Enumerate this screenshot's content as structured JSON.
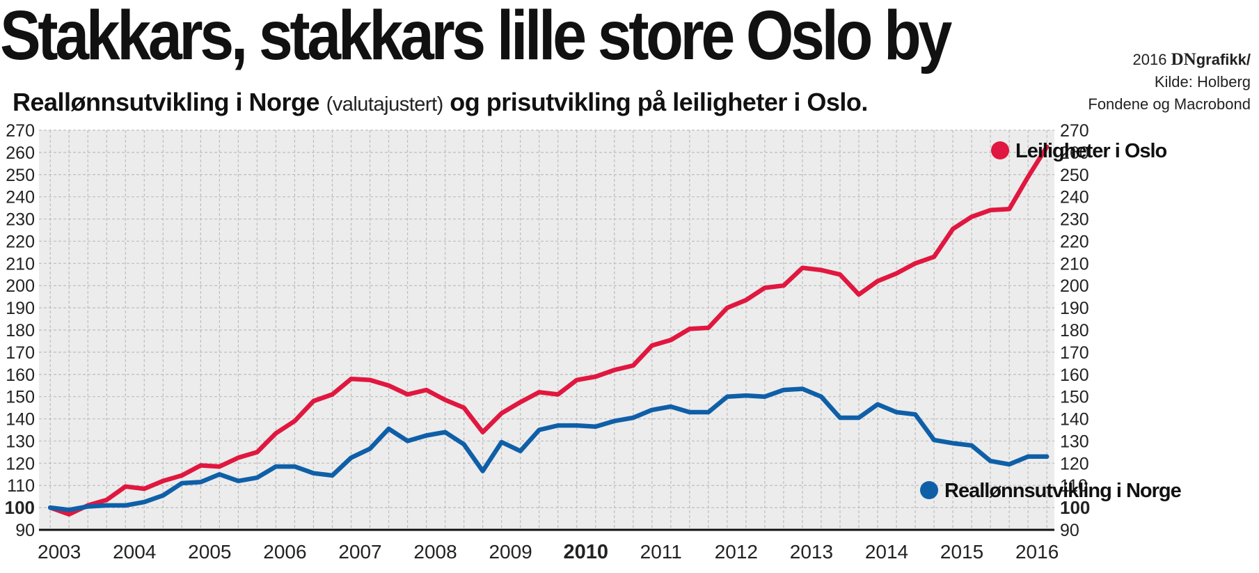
{
  "header": {
    "title": "Stakkars, stakkars lille store Oslo by",
    "subtitle_part1": "Reallønnsutvikling i Norge",
    "subtitle_part2": "(valutajustert)",
    "subtitle_part3": "og prisutvikling på leiligheter i Oslo."
  },
  "credit": {
    "year": "2016",
    "brand": "DN",
    "brand_suffix": "grafikk/",
    "source_line1": "Kilde: Holberg",
    "source_line2": "Fondene og Macrobond"
  },
  "chart_data": {
    "type": "line",
    "title": "Stakkars, stakkars lille store Oslo by",
    "subtitle": "Reallønnsutvikling i Norge (valutajustert) og prisutvikling på leiligheter i Oslo.",
    "x_start": 2003,
    "x_step": 0.25,
    "xlim": [
      2002.85,
      2016.35
    ],
    "x_ticks": [
      "2003",
      "2004",
      "2005",
      "2006",
      "2007",
      "2008",
      "2009",
      "2010",
      "2011",
      "2012",
      "2013",
      "2014",
      "2015",
      "2016"
    ],
    "x_tick_bold": "2010",
    "ylim": [
      90,
      270
    ],
    "y_ticks": [
      90,
      100,
      110,
      120,
      130,
      140,
      150,
      160,
      170,
      180,
      190,
      200,
      210,
      220,
      230,
      240,
      250,
      260,
      270
    ],
    "y_tick_bold": 100,
    "grid": true,
    "series": [
      {
        "name": "Leiligheter i Oslo",
        "color": "#e0173f",
        "legend_position": "top-right",
        "values": [
          100,
          97,
          101,
          103.5,
          109.5,
          108.5,
          112,
          114.5,
          119,
          118.5,
          122.5,
          125,
          133.5,
          139,
          148,
          151,
          158,
          157.5,
          155,
          151,
          153,
          148.5,
          145,
          134,
          142.5,
          147.5,
          152,
          151,
          157.5,
          159,
          162,
          164,
          173,
          175.5,
          180.5,
          181,
          190,
          193.5,
          199,
          200,
          208,
          207,
          205,
          196,
          202,
          205.5,
          210,
          213,
          225.5,
          231,
          234,
          234.5,
          249,
          262.5
        ]
      },
      {
        "name": "Reallønnsutvikling i Norge",
        "color": "#0f5fa8",
        "legend_position": "bottom-right",
        "values": [
          100,
          99,
          100.5,
          101,
          101,
          102.5,
          105.5,
          111,
          111.5,
          115,
          112,
          113.5,
          118.5,
          118.5,
          115.5,
          114.5,
          122.5,
          126.5,
          135.5,
          130,
          132.5,
          134,
          128.5,
          116.5,
          129.5,
          125.5,
          135,
          137,
          137,
          136.5,
          139,
          140.5,
          144,
          145.5,
          143,
          143,
          150,
          150.5,
          150,
          153,
          153.5,
          150,
          140.5,
          140.5,
          146.5,
          143,
          142,
          130.5,
          129,
          128,
          121,
          119.5,
          123,
          123
        ]
      }
    ]
  }
}
